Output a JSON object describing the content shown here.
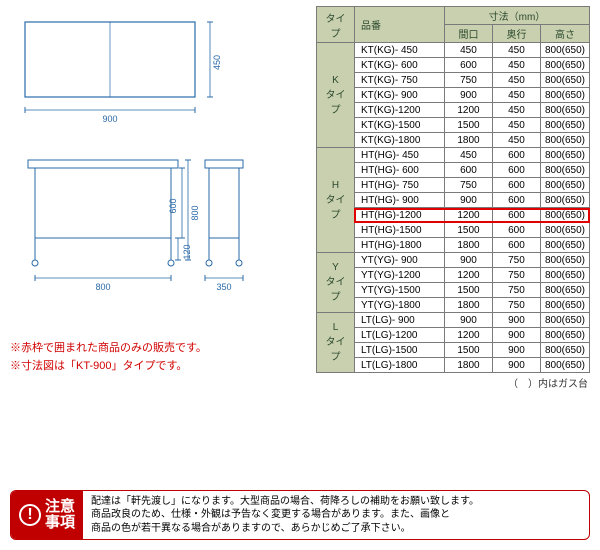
{
  "diagram": {
    "stroke": "#2a6aa8",
    "text_color": "#2a6aa8",
    "top_view": {
      "w_label": "900",
      "d_label": "450"
    },
    "front_view": {
      "w_label": "800",
      "h_label": "800",
      "h2_label": "600",
      "foot_label": "120"
    },
    "side_view": {
      "d_label": "350"
    }
  },
  "notes": {
    "line1": "※赤枠で囲まれた商品のみの販売です。",
    "line2": "※寸法図は「KT-900」タイプです。"
  },
  "table": {
    "header_bg": "#c8d0b0",
    "header_color": "#2c4a2c",
    "cols": {
      "type": "タイプ",
      "pn": "品番",
      "dim_group": "寸法（mm）",
      "w": "間口",
      "d": "奥行",
      "h": "高さ"
    },
    "groups": [
      {
        "type": "K\nタイプ",
        "rows": [
          {
            "pn": "KT(KG)-  450",
            "w": "450",
            "d": "450",
            "h": "800(650)"
          },
          {
            "pn": "KT(KG)-  600",
            "w": "600",
            "d": "450",
            "h": "800(650)"
          },
          {
            "pn": "KT(KG)-  750",
            "w": "750",
            "d": "450",
            "h": "800(650)"
          },
          {
            "pn": "KT(KG)-  900",
            "w": "900",
            "d": "450",
            "h": "800(650)"
          },
          {
            "pn": "KT(KG)-1200",
            "w": "1200",
            "d": "450",
            "h": "800(650)"
          },
          {
            "pn": "KT(KG)-1500",
            "w": "1500",
            "d": "450",
            "h": "800(650)"
          },
          {
            "pn": "KT(KG)-1800",
            "w": "1800",
            "d": "450",
            "h": "800(650)"
          }
        ]
      },
      {
        "type": "H\nタイプ",
        "highlight_index": 4,
        "rows": [
          {
            "pn": "HT(HG)-  450",
            "w": "450",
            "d": "600",
            "h": "800(650)"
          },
          {
            "pn": "HT(HG)-  600",
            "w": "600",
            "d": "600",
            "h": "800(650)"
          },
          {
            "pn": "HT(HG)-  750",
            "w": "750",
            "d": "600",
            "h": "800(650)"
          },
          {
            "pn": "HT(HG)-  900",
            "w": "900",
            "d": "600",
            "h": "800(650)"
          },
          {
            "pn": "HT(HG)-1200",
            "w": "1200",
            "d": "600",
            "h": "800(650)"
          },
          {
            "pn": "HT(HG)-1500",
            "w": "1500",
            "d": "600",
            "h": "800(650)"
          },
          {
            "pn": "HT(HG)-1800",
            "w": "1800",
            "d": "600",
            "h": "800(650)"
          }
        ]
      },
      {
        "type": "Y\nタイプ",
        "rows": [
          {
            "pn": "YT(YG)-  900",
            "w": "900",
            "d": "750",
            "h": "800(650)"
          },
          {
            "pn": "YT(YG)-1200",
            "w": "1200",
            "d": "750",
            "h": "800(650)"
          },
          {
            "pn": "YT(YG)-1500",
            "w": "1500",
            "d": "750",
            "h": "800(650)"
          },
          {
            "pn": "YT(YG)-1800",
            "w": "1800",
            "d": "750",
            "h": "800(650)"
          }
        ]
      },
      {
        "type": "L\nタイプ",
        "rows": [
          {
            "pn": "LT(LG)-  900",
            "w": "900",
            "d": "900",
            "h": "800(650)"
          },
          {
            "pn": "LT(LG)-1200",
            "w": "1200",
            "d": "900",
            "h": "800(650)"
          },
          {
            "pn": "LT(LG)-1500",
            "w": "1500",
            "d": "900",
            "h": "800(650)"
          },
          {
            "pn": "LT(LG)-1800",
            "w": "1800",
            "d": "900",
            "h": "800(650)"
          }
        ]
      }
    ],
    "footnote": "（　）内はガス台"
  },
  "caution": {
    "label_line1": "注意",
    "label_line2": "事項",
    "body_line1": "配達は「軒先渡し」になります。大型商品の場合、荷降ろしの補助をお願い致します。",
    "body_line2": "商品改良のため、仕様・外観は予告なく変更する場合があります。また、画像と",
    "body_line3": "商品の色が若干異なる場合がありますので、あらかじめご了承下さい。"
  }
}
